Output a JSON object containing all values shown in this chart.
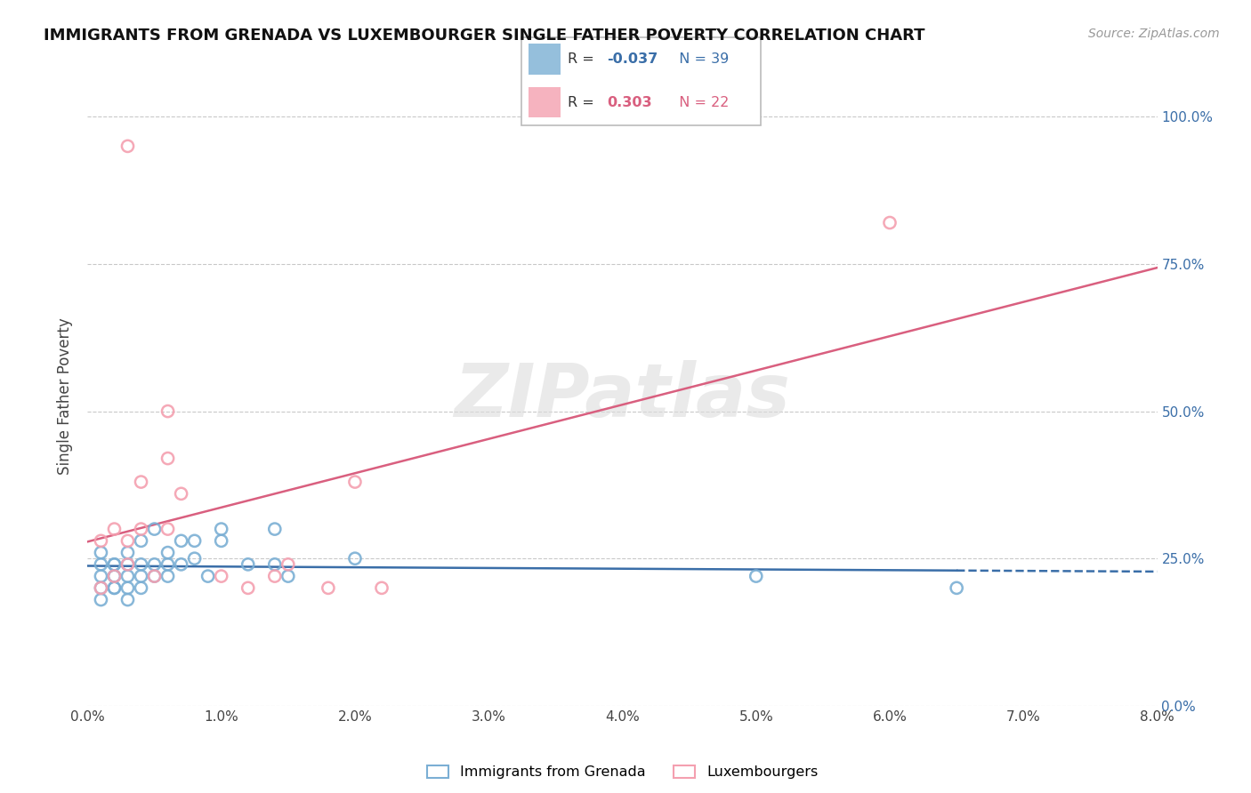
{
  "title": "IMMIGRANTS FROM GRENADA VS LUXEMBOURGER SINGLE FATHER POVERTY CORRELATION CHART",
  "source": "Source: ZipAtlas.com",
  "ylabel": "Single Father Poverty",
  "series1_label": "Immigrants from Grenada",
  "series2_label": "Luxembourgers",
  "xmin": 0.0,
  "xmax": 0.08,
  "ymin": 0.0,
  "ymax": 1.05,
  "yticks": [
    0.0,
    0.25,
    0.5,
    0.75,
    1.0
  ],
  "color_blue": "#7BAFD4",
  "color_pink": "#F4A0B0",
  "color_trend_blue": "#3A6EA8",
  "color_trend_pink": "#D95F7F",
  "watermark": "ZIPatlas",
  "grenada_x": [
    0.001,
    0.001,
    0.001,
    0.001,
    0.001,
    0.002,
    0.002,
    0.002,
    0.002,
    0.002,
    0.002,
    0.003,
    0.003,
    0.003,
    0.003,
    0.003,
    0.004,
    0.004,
    0.004,
    0.004,
    0.005,
    0.005,
    0.005,
    0.006,
    0.006,
    0.006,
    0.007,
    0.007,
    0.008,
    0.008,
    0.009,
    0.01,
    0.01,
    0.012,
    0.014,
    0.014,
    0.015,
    0.02,
    0.05,
    0.065
  ],
  "grenada_y": [
    0.2,
    0.22,
    0.24,
    0.18,
    0.26,
    0.2,
    0.22,
    0.24,
    0.2,
    0.22,
    0.24,
    0.18,
    0.2,
    0.22,
    0.24,
    0.26,
    0.2,
    0.22,
    0.24,
    0.28,
    0.22,
    0.24,
    0.3,
    0.22,
    0.24,
    0.26,
    0.24,
    0.28,
    0.25,
    0.28,
    0.22,
    0.28,
    0.3,
    0.24,
    0.24,
    0.3,
    0.22,
    0.25,
    0.22,
    0.2
  ],
  "luxembourger_x": [
    0.001,
    0.001,
    0.002,
    0.002,
    0.003,
    0.003,
    0.003,
    0.004,
    0.004,
    0.005,
    0.006,
    0.006,
    0.006,
    0.007,
    0.01,
    0.012,
    0.014,
    0.015,
    0.018,
    0.02,
    0.022,
    0.06
  ],
  "luxembourger_y": [
    0.2,
    0.28,
    0.22,
    0.3,
    0.24,
    0.28,
    0.95,
    0.3,
    0.38,
    0.22,
    0.42,
    0.5,
    0.3,
    0.36,
    0.22,
    0.2,
    0.22,
    0.24,
    0.2,
    0.38,
    0.2,
    0.82
  ]
}
